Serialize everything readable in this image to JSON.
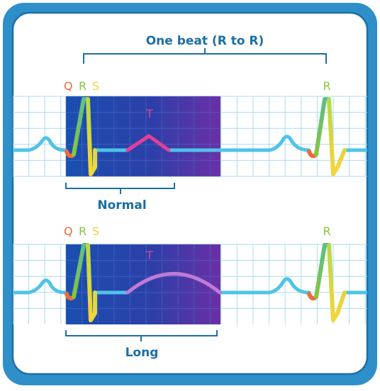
{
  "top_bracket_label": "One beat (R to R)",
  "panels": [
    {
      "q_label": "Q",
      "r_label": "R",
      "s_label": "S",
      "t_label": "T",
      "r2_label": "R",
      "interval_label": "Normal"
    },
    {
      "q_label": "Q",
      "r_label": "R",
      "s_label": "S",
      "t_label": "T",
      "r2_label": "R",
      "interval_label": "Long"
    }
  ],
  "colors": {
    "frame_outer": "#2f8fc9",
    "frame_inner_border": "#1e6ea8",
    "text": "#1b6fa6",
    "bracket": "#1b6fa6",
    "grid": "#a9dbf3",
    "band_start": "#1a4fb0",
    "band_end": "#6c2fa6",
    "baseline": "#4fc3ea",
    "q_color": "#ef6a3a",
    "r_color": "#86c441",
    "s_color": "#f1d23a",
    "t_color_normal": "#e63d9b",
    "t_color_long": "#c07ad6"
  }
}
